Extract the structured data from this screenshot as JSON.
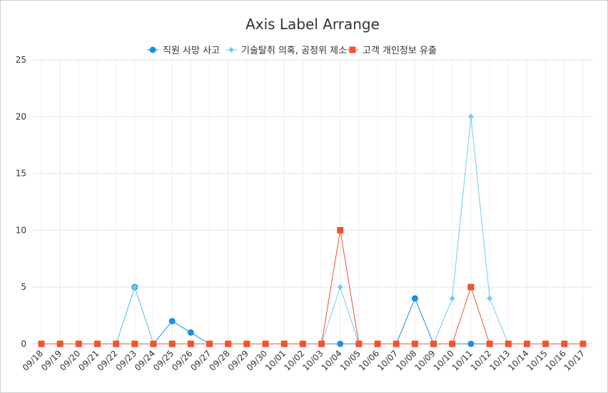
{
  "chart_data": {
    "type": "line",
    "title": "Axis Label Arrange",
    "categories": [
      "09/18",
      "09/19",
      "09/20",
      "09/21",
      "09/22",
      "09/23",
      "09/24",
      "09/25",
      "09/26",
      "09/27",
      "09/28",
      "09/29",
      "09/30",
      "10/01",
      "10/02",
      "10/03",
      "10/04",
      "10/05",
      "10/06",
      "10/07",
      "10/08",
      "10/09",
      "10/10",
      "10/11",
      "10/12",
      "10/13",
      "10/14",
      "10/15",
      "10/16",
      "10/17"
    ],
    "yTicks": [
      "0",
      "5",
      "10",
      "15",
      "20",
      "25"
    ],
    "ylim": [
      0,
      25
    ],
    "series": [
      {
        "name": "직원 사망 사고",
        "color": "#1a8fe3",
        "marker": "circle",
        "values": [
          0,
          0,
          0,
          0,
          0,
          5,
          0,
          2,
          1,
          0,
          0,
          0,
          0,
          0,
          0,
          0,
          0,
          0,
          0,
          0,
          4,
          0,
          0,
          0,
          0,
          0,
          0,
          0,
          0,
          0
        ]
      },
      {
        "name": "기술탈취 의혹, 공정위 제소",
        "color": "#6fcdf4",
        "marker": "diamond",
        "values": [
          0,
          0,
          0,
          0,
          0,
          5,
          0,
          0,
          0,
          0,
          0,
          0,
          0,
          0,
          0,
          0,
          5,
          0,
          0,
          0,
          0,
          0,
          4,
          20,
          4,
          0,
          0,
          0,
          0,
          0
        ]
      },
      {
        "name": "고객 개인정보 유출",
        "color": "#f0532d",
        "marker": "square",
        "values": [
          0,
          0,
          0,
          0,
          0,
          0,
          0,
          0,
          0,
          0,
          0,
          0,
          0,
          0,
          0,
          0,
          10,
          0,
          0,
          0,
          0,
          0,
          0,
          5,
          0,
          0,
          0,
          0,
          0,
          0
        ]
      }
    ]
  }
}
